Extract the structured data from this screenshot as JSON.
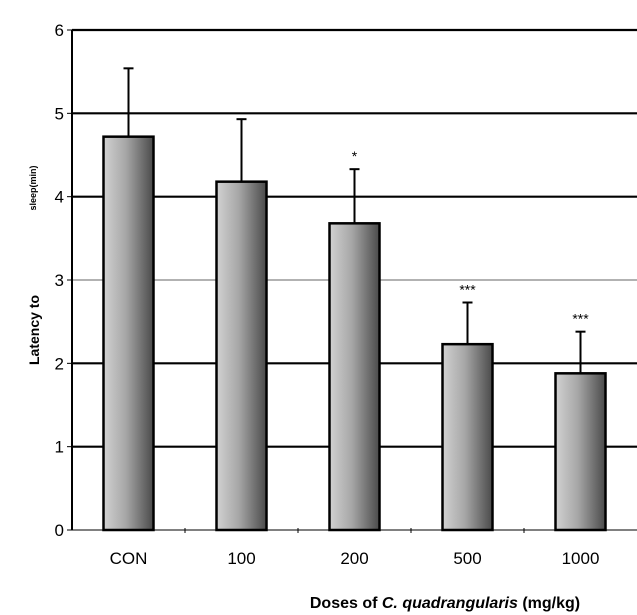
{
  "chart_data": {
    "type": "bar",
    "categories": [
      "CON",
      "100",
      "200",
      "500",
      "1000"
    ],
    "values": [
      4.72,
      4.18,
      3.68,
      2.23,
      1.88
    ],
    "errors": [
      0.82,
      0.75,
      0.65,
      0.5,
      0.5
    ],
    "significance": [
      "",
      "",
      "*",
      "***",
      "***"
    ],
    "ylim": [
      0,
      6
    ],
    "yticks": [
      "0",
      "1",
      "2",
      "3",
      "4",
      "5",
      "6"
    ],
    "ylabel_main": "Latency to",
    "ylabel_sub": "sleep(min)",
    "xlabel_prefix": "Doses of ",
    "xlabel_italic": "C. quadrangularis",
    "xlabel_suffix": " (mg/kg)",
    "grid": true,
    "bar_color": "#8c8c8c",
    "bar_edge_color": "#000000"
  }
}
